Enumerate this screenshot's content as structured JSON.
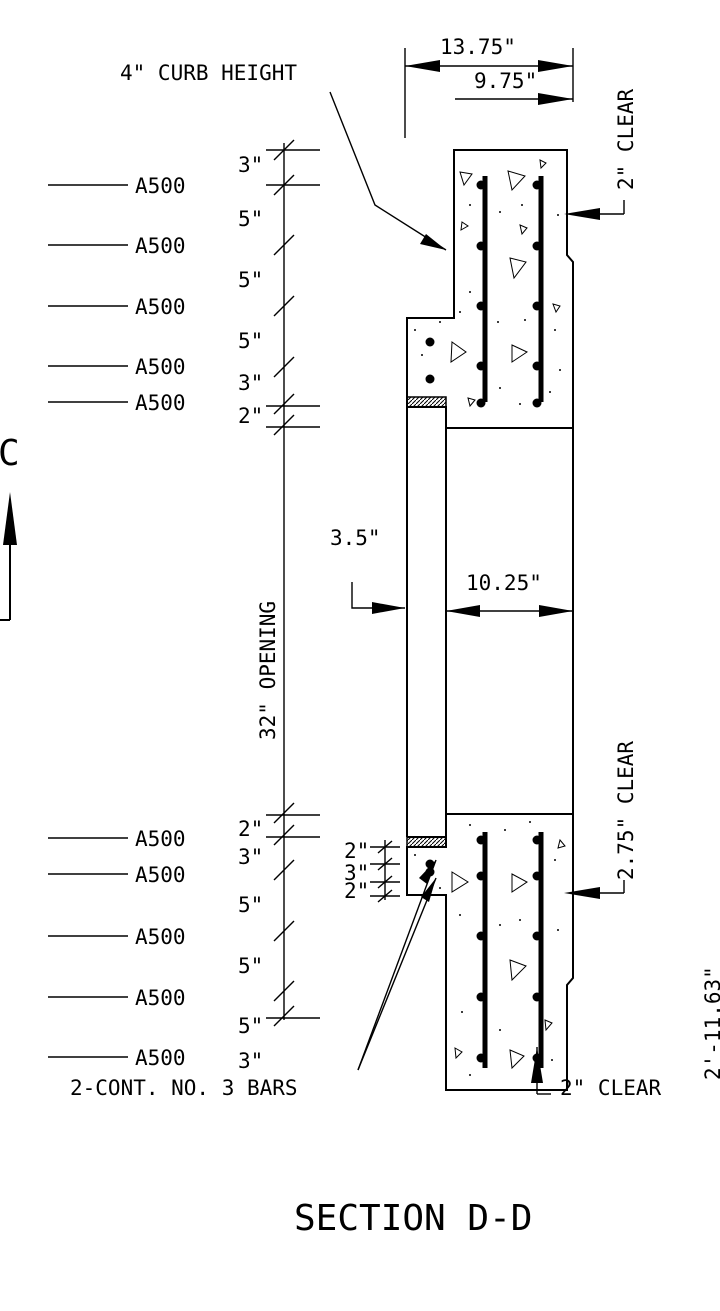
{
  "title": "SECTION D-D",
  "section_marker": "C",
  "labels": {
    "curb_height": "4\" CURB HEIGHT",
    "dim_13_75": "13.75\"",
    "dim_9_75": "9.75\"",
    "clear_2_top": "2\" CLEAR",
    "clear_2_75": "2.75\" CLEAR",
    "clear_2_bottom": "2\" CLEAR",
    "dim_3_5": "3.5\"",
    "dim_10_25": "10.25\"",
    "opening": "32\" OPENING",
    "cont_bars": "2-CONT. NO. 3 BARS",
    "overall_height": "2'-11.63\""
  },
  "top_rebars": [
    "A500",
    "A500",
    "A500",
    "A500",
    "A500"
  ],
  "bottom_rebars": [
    "A500",
    "A500",
    "A500",
    "A500",
    "A500"
  ],
  "top_spacing": [
    "3\"",
    "5\"",
    "5\"",
    "5\"",
    "3\"",
    "2\""
  ],
  "bottom_spacing": [
    "2\"",
    "3\"",
    "5\"",
    "5\"",
    "5\"",
    "3\""
  ],
  "small_spacing": [
    "2\"",
    "3\"",
    "2\""
  ]
}
